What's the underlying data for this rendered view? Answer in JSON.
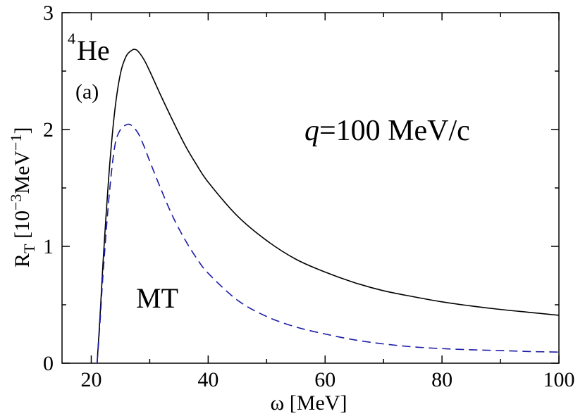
{
  "chart_data": {
    "type": "line",
    "xlabel": "ω  [MeV]",
    "ylabel_main": "R",
    "ylabel_sub": "T",
    "ylabel_units_pre": " [10",
    "ylabel_units_exp": "−3",
    "ylabel_units_mid": "MeV",
    "ylabel_units_exp2": "−1",
    "ylabel_units_post": "]",
    "xlim": [
      15,
      100
    ],
    "ylim": [
      0,
      3
    ],
    "x_ticks": [
      20,
      40,
      60,
      80,
      100
    ],
    "y_ticks": [
      0,
      1,
      2,
      3
    ],
    "x_tick_labels": [
      "20",
      "40",
      "60",
      "80",
      "100"
    ],
    "y_tick_labels": [
      "0",
      "1",
      "2",
      "3"
    ],
    "grid": false,
    "series": [
      {
        "style": "solid",
        "color": "#000000",
        "x": [
          21.0,
          21.5,
          22,
          23,
          24,
          25,
          26,
          27,
          27.5,
          28,
          29,
          30,
          32,
          34,
          36,
          38,
          40,
          45,
          50,
          55,
          60,
          65,
          70,
          75,
          80,
          85,
          90,
          95,
          100
        ],
        "y": [
          0.0,
          0.4,
          0.85,
          1.6,
          2.15,
          2.48,
          2.63,
          2.68,
          2.685,
          2.67,
          2.6,
          2.5,
          2.28,
          2.07,
          1.87,
          1.7,
          1.55,
          1.26,
          1.05,
          0.89,
          0.78,
          0.69,
          0.62,
          0.57,
          0.525,
          0.49,
          0.46,
          0.435,
          0.41
        ]
      },
      {
        "style": "dashed",
        "color": "#1a1aa6",
        "x": [
          21.0,
          21.5,
          22,
          23,
          24,
          25,
          26,
          26.5,
          27,
          28,
          29,
          30,
          32,
          34,
          36,
          38,
          40,
          45,
          50,
          55,
          60,
          65,
          70,
          75,
          80,
          85,
          90,
          95,
          100
        ],
        "y": [
          0.0,
          0.35,
          0.75,
          1.4,
          1.85,
          2.0,
          2.04,
          2.045,
          2.03,
          1.97,
          1.86,
          1.73,
          1.48,
          1.25,
          1.06,
          0.9,
          0.77,
          0.54,
          0.4,
          0.31,
          0.25,
          0.2,
          0.165,
          0.14,
          0.125,
          0.115,
          0.108,
          0.1,
          0.095
        ]
      }
    ],
    "annotations": {
      "nucleus_mass": "4",
      "nucleus": "He",
      "panel": "(a)",
      "q_symbol": "q",
      "q_text": "=100 MeV/c",
      "potential": "MT"
    }
  }
}
